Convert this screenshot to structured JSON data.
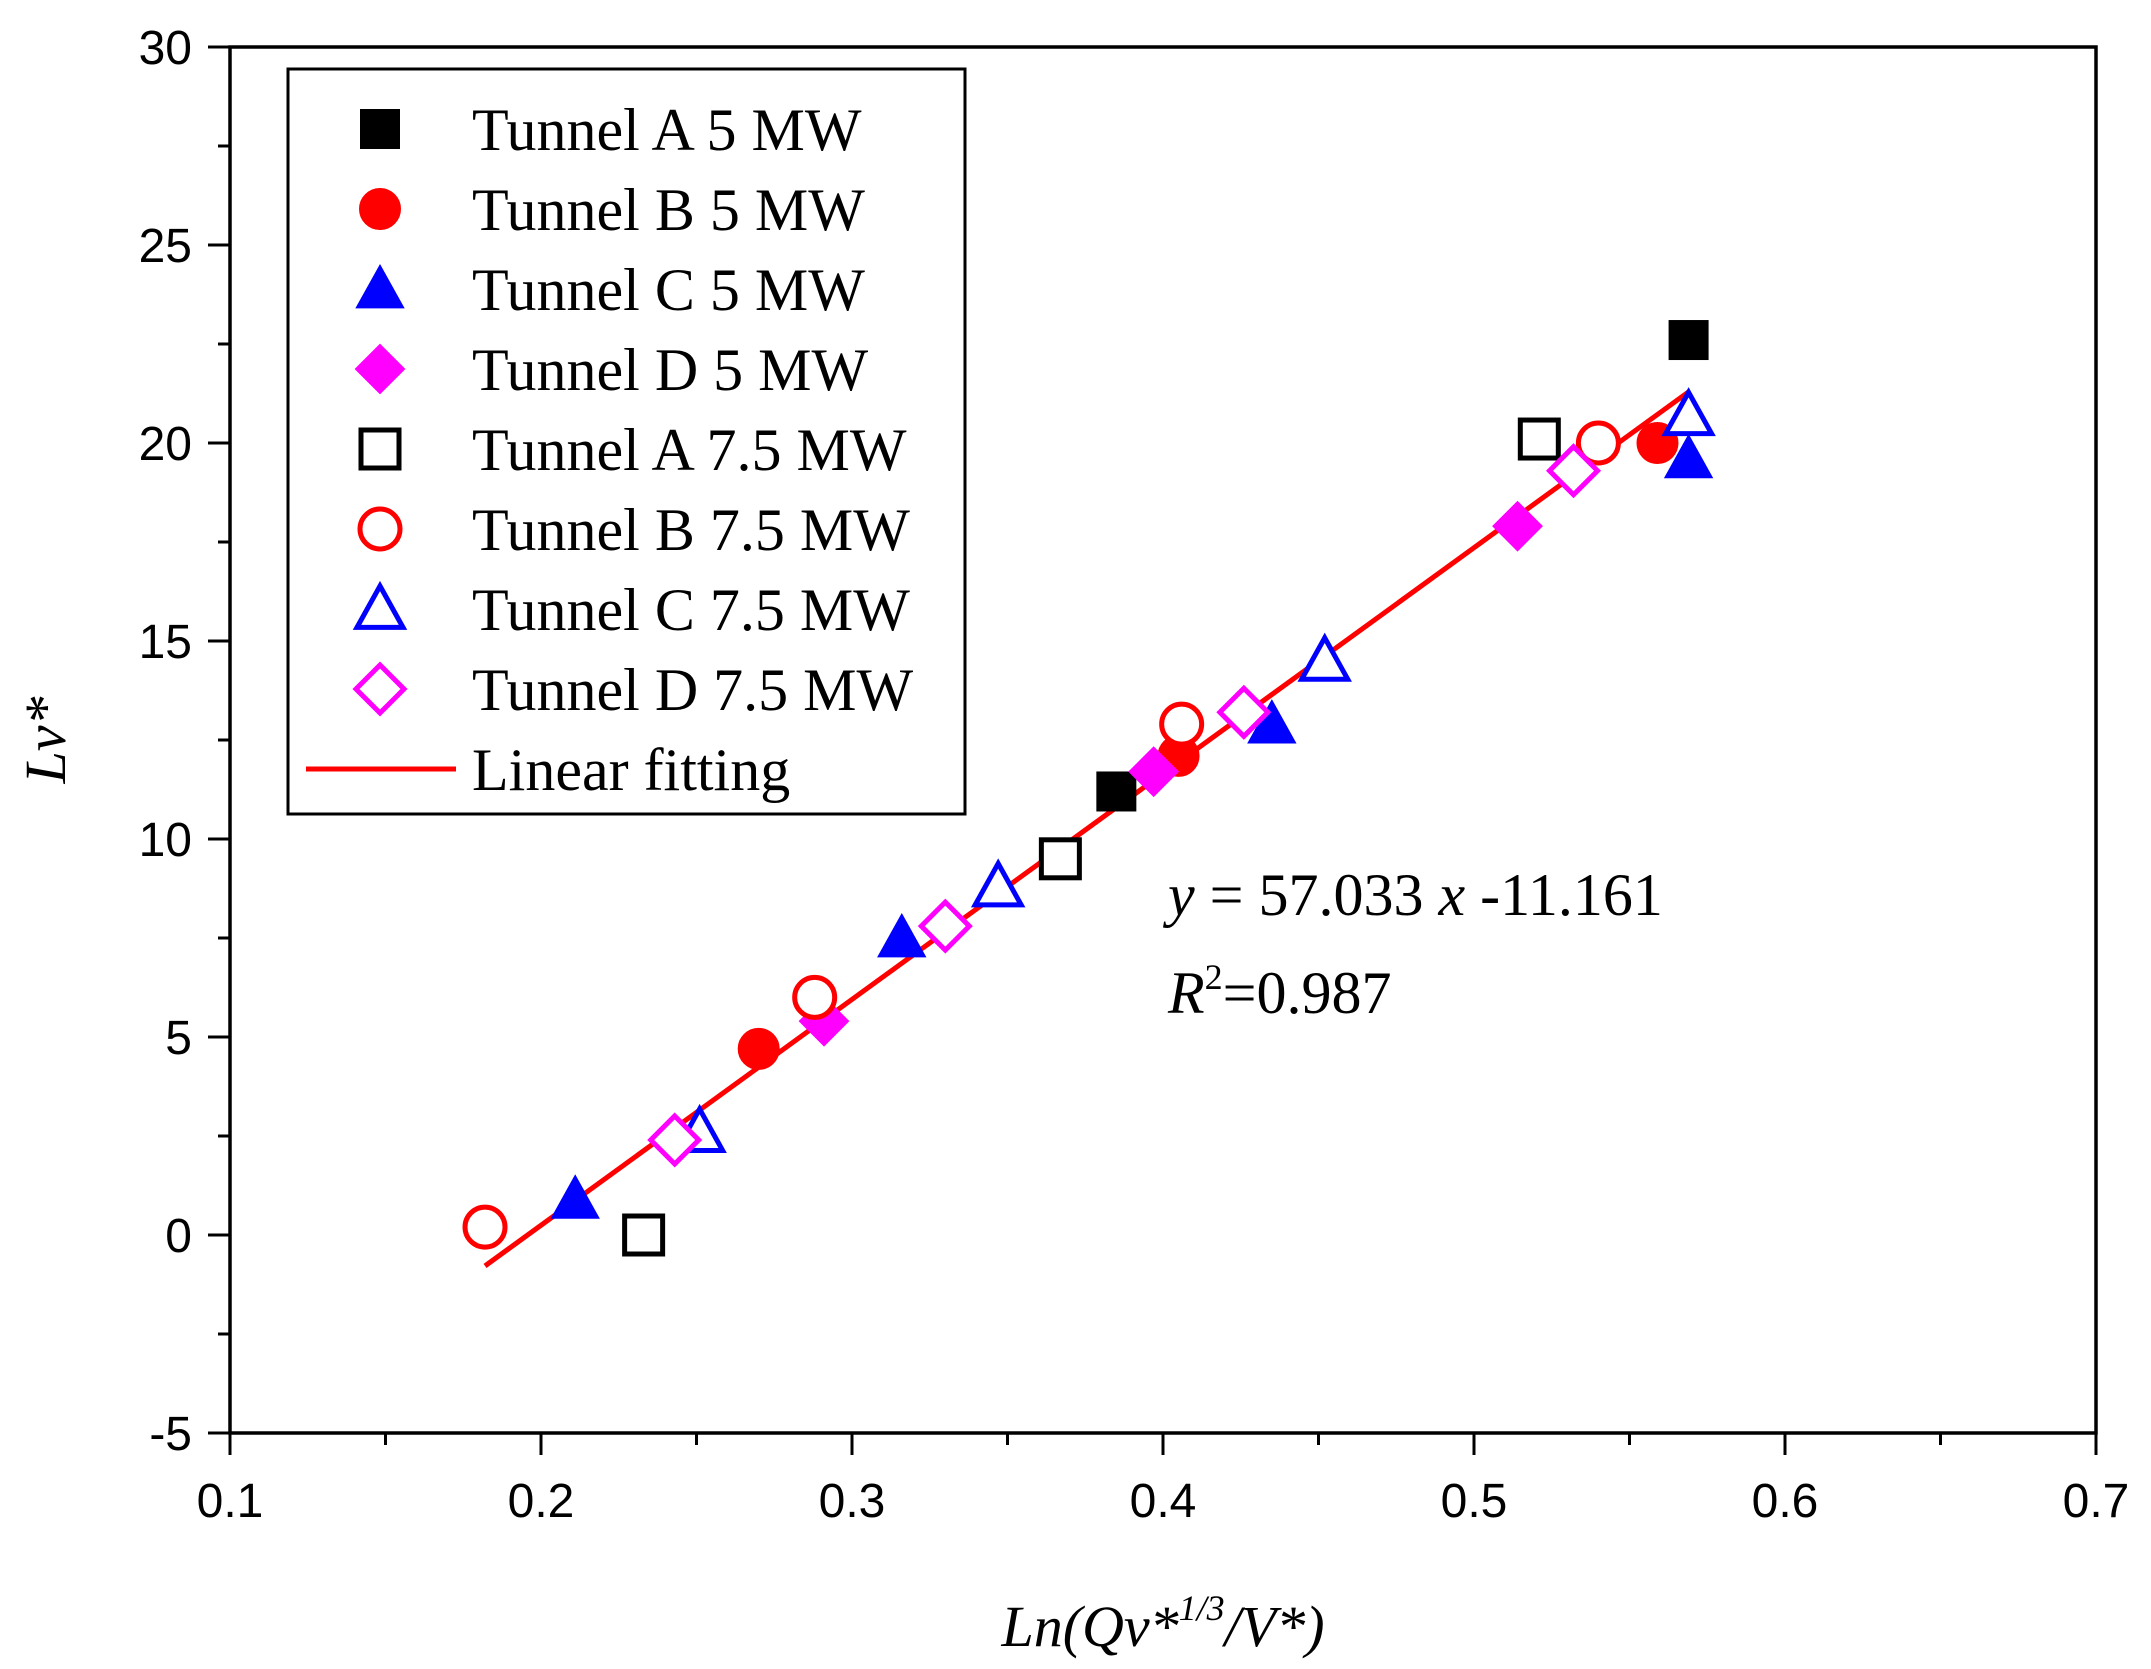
{
  "chart_data": {
    "type": "scatter",
    "title": "",
    "xlabel": "Ln(Qv*1/3/V*)",
    "xlabel_parts": {
      "main": "Ln(Qv*",
      "sup": "1/3",
      "tail": "/V*)"
    },
    "ylabel": "Lv*",
    "xlim": [
      0.1,
      0.7
    ],
    "ylim": [
      -5,
      30
    ],
    "x_ticks": [
      0.1,
      0.2,
      0.3,
      0.4,
      0.5,
      0.6,
      0.7
    ],
    "x_tick_labels": [
      "0.1",
      "0.2",
      "0.3",
      "0.4",
      "0.5",
      "0.6",
      "0.7"
    ],
    "y_ticks": [
      -5,
      0,
      5,
      10,
      15,
      20,
      25,
      30
    ],
    "y_tick_labels": [
      "-5",
      "0",
      "5",
      "10",
      "15",
      "20",
      "25",
      "30"
    ],
    "grid": false,
    "legend_position": "top-left",
    "series": [
      {
        "name": "Tunnel A 5 MW",
        "marker": "square",
        "filled": true,
        "color": "#000000",
        "points": [
          [
            0.385,
            11.2
          ],
          [
            0.569,
            22.6
          ]
        ]
      },
      {
        "name": "Tunnel B 5 MW",
        "marker": "circle",
        "filled": true,
        "color": "#ff0000",
        "points": [
          [
            0.27,
            4.7
          ],
          [
            0.405,
            12.1
          ],
          [
            0.559,
            20.0
          ]
        ]
      },
      {
        "name": "Tunnel C 5 MW",
        "marker": "triangle",
        "filled": true,
        "color": "#0000ff",
        "points": [
          [
            0.211,
            0.9
          ],
          [
            0.316,
            7.5
          ],
          [
            0.435,
            12.9
          ],
          [
            0.569,
            19.6
          ]
        ]
      },
      {
        "name": "Tunnel D 5 MW",
        "marker": "diamond",
        "filled": true,
        "color": "#ff00ff",
        "points": [
          [
            0.291,
            5.4
          ],
          [
            0.397,
            11.7
          ],
          [
            0.514,
            17.9
          ]
        ]
      },
      {
        "name": "Tunnel A 7.5 MW",
        "marker": "square",
        "filled": false,
        "color": "#000000",
        "points": [
          [
            0.233,
            0.0
          ],
          [
            0.367,
            9.5
          ],
          [
            0.521,
            20.1
          ]
        ]
      },
      {
        "name": "Tunnel B 7.5 MW",
        "marker": "circle",
        "filled": false,
        "color": "#ff0000",
        "points": [
          [
            0.182,
            0.2
          ],
          [
            0.288,
            6.0
          ],
          [
            0.406,
            12.9
          ],
          [
            0.54,
            20.0
          ]
        ]
      },
      {
        "name": "Tunnel C 7.5 MW",
        "marker": "triangle",
        "filled": false,
        "color": "#0000ff",
        "points": [
          [
            0.251,
            2.6
          ],
          [
            0.347,
            8.8
          ],
          [
            0.452,
            14.5
          ],
          [
            0.569,
            20.7
          ]
        ]
      },
      {
        "name": "Tunnel D 7.5 MW",
        "marker": "diamond",
        "filled": false,
        "color": "#ff00ff",
        "points": [
          [
            0.243,
            2.4
          ],
          [
            0.33,
            7.8
          ],
          [
            0.426,
            13.2
          ],
          [
            0.532,
            19.3
          ]
        ]
      }
    ],
    "fit": {
      "name": "Linear fitting",
      "color": "#ff0000",
      "slope": 57.033,
      "intercept": -11.161,
      "x_range": [
        0.182,
        0.569
      ],
      "equation": {
        "y": "y",
        "eq_text": " = 57.033 ",
        "x": "x",
        "const_text": " -11.161"
      },
      "r2": {
        "R": "R",
        "sup": "2",
        "value_text": "=0.987"
      }
    }
  }
}
